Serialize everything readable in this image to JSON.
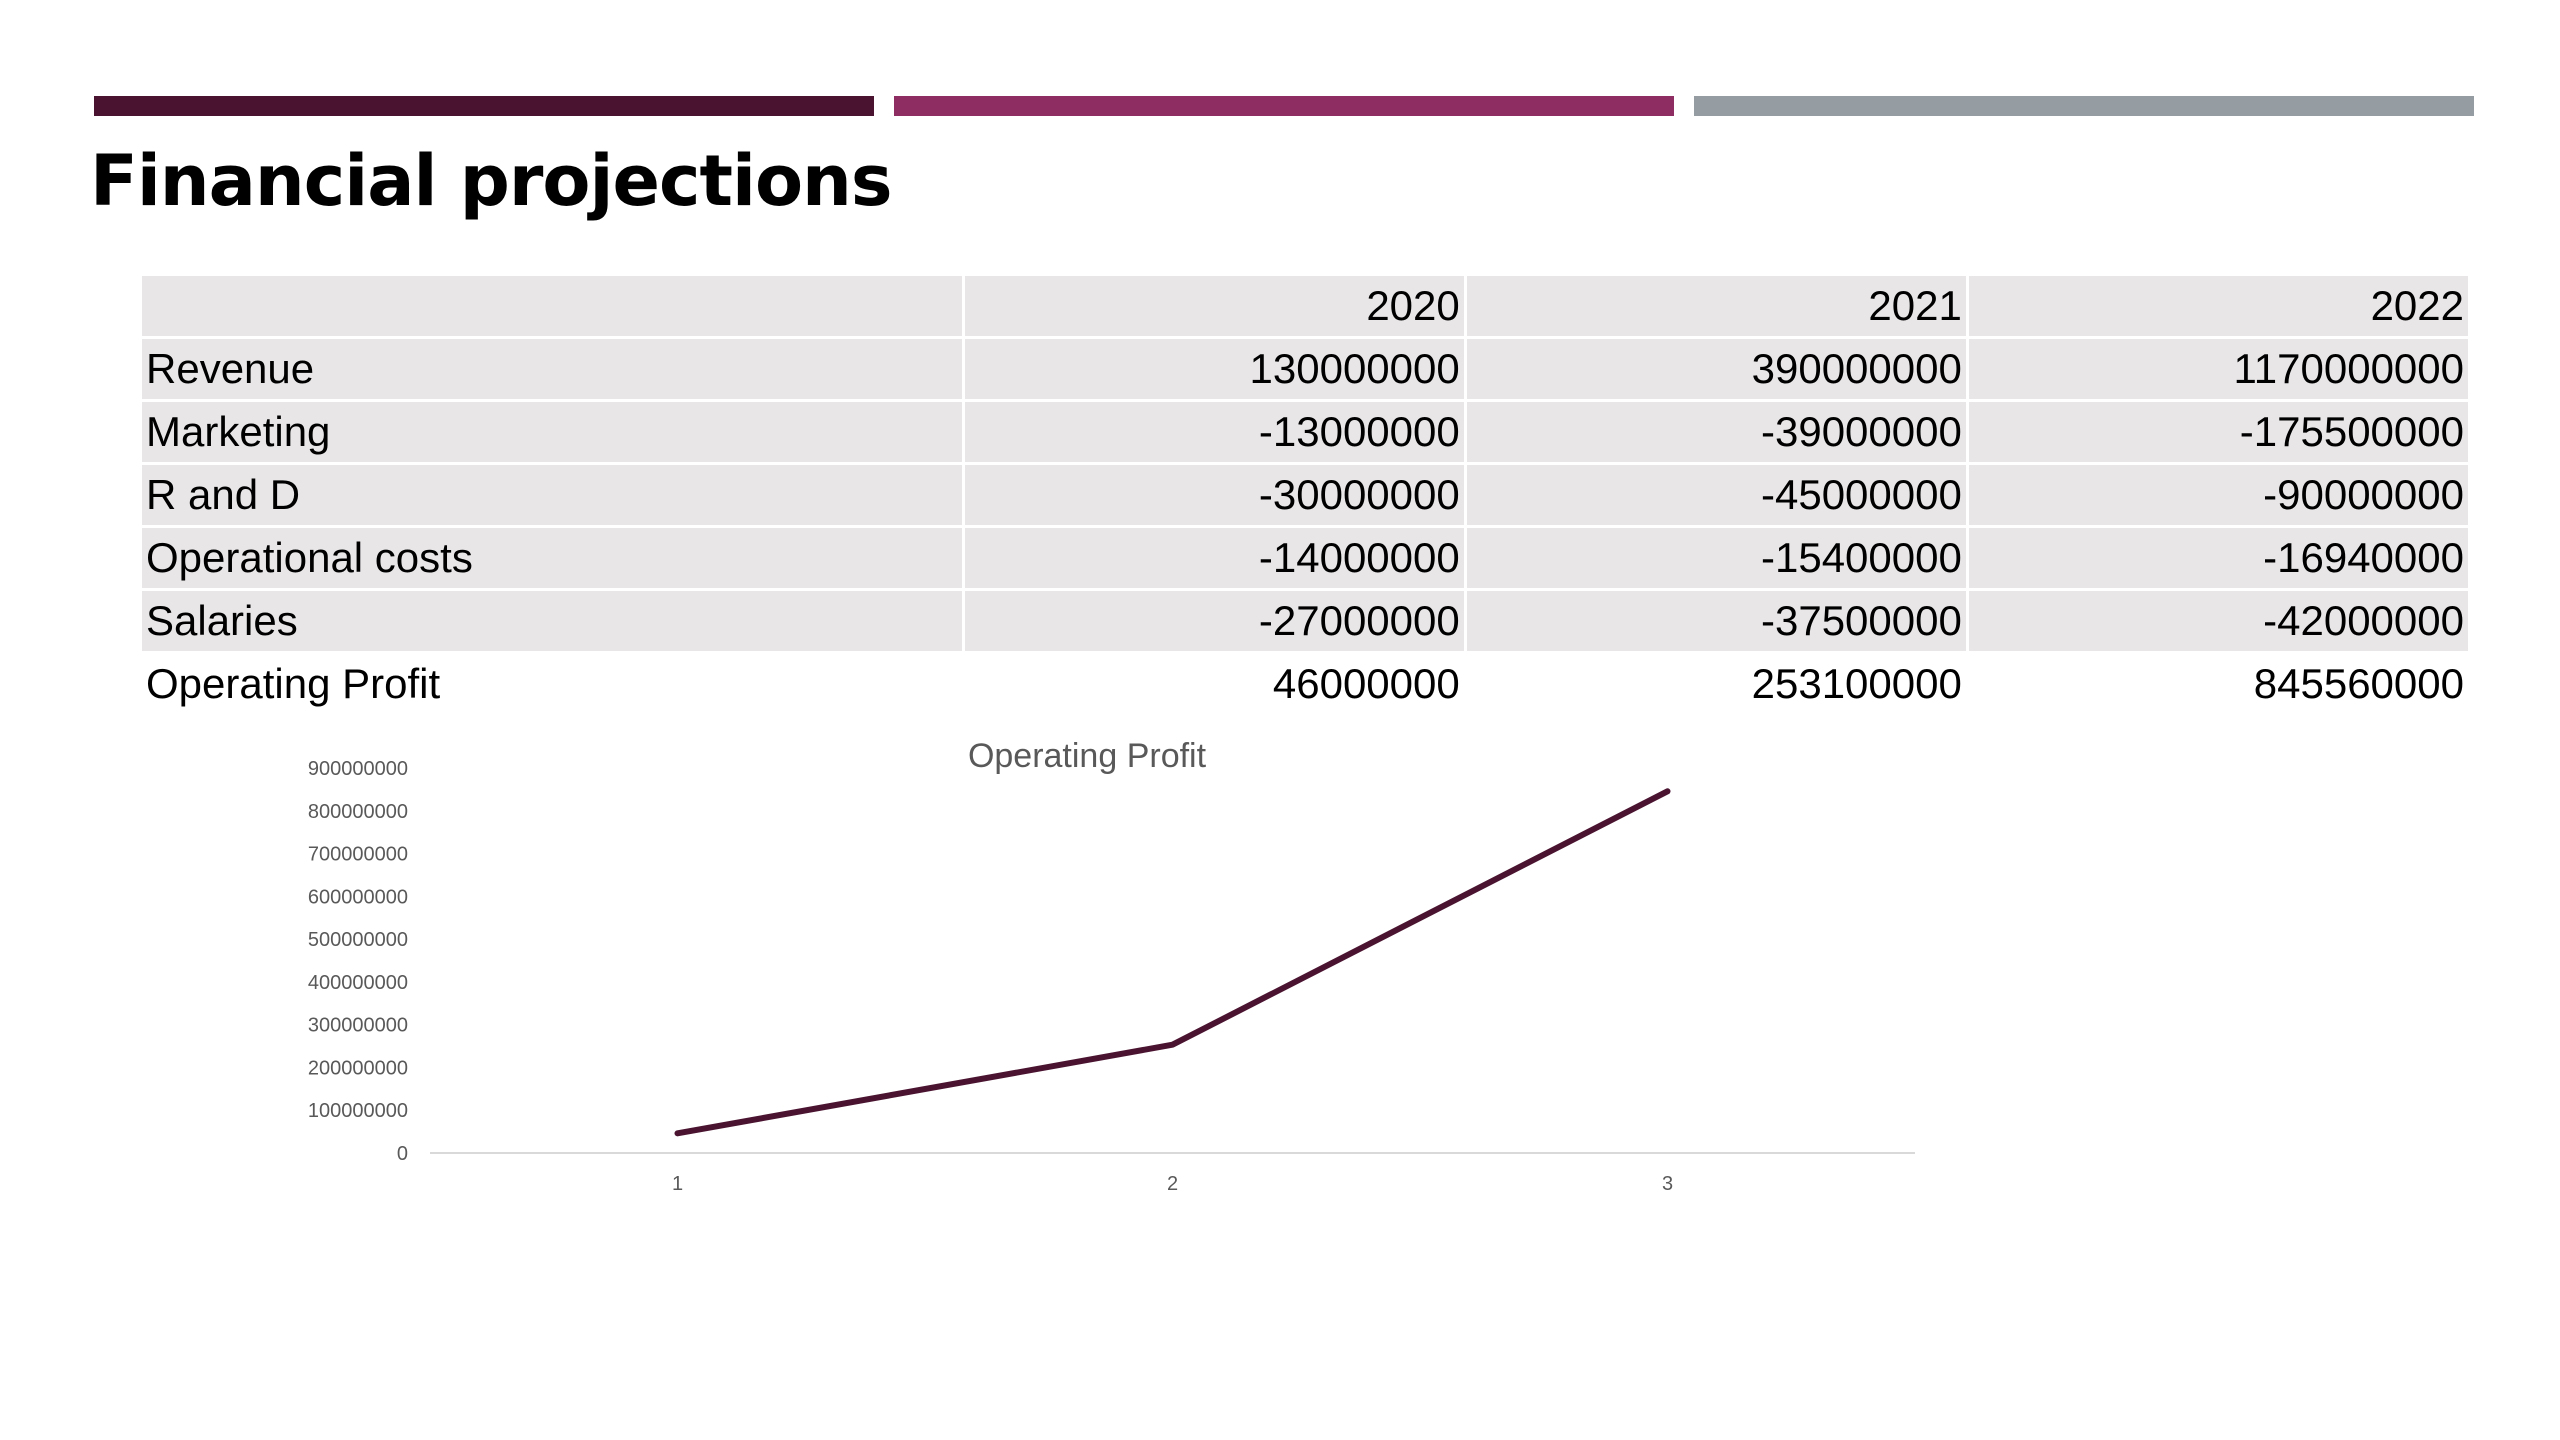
{
  "title": "Financial projections",
  "colors": {
    "accent_dark": "#4a1430",
    "accent_mid": "#8e2d62",
    "accent_gray": "#959da3",
    "table_shade": "#e8e6e7",
    "line": "#4a1430",
    "axis_text": "#595959",
    "axis_line": "#d9d9d9"
  },
  "table": {
    "columns": [
      "",
      "2020",
      "2021",
      "2022"
    ],
    "rows": [
      {
        "label": "Revenue",
        "values": [
          "130000000",
          "390000000",
          "1170000000"
        ]
      },
      {
        "label": "Marketing",
        "values": [
          "-13000000",
          "-39000000",
          "-175500000"
        ]
      },
      {
        "label": "R and D",
        "values": [
          "-30000000",
          "-45000000",
          "-90000000"
        ]
      },
      {
        "label": "Operational costs",
        "values": [
          "-14000000",
          "-15400000",
          "-16940000"
        ]
      },
      {
        "label": "Salaries",
        "values": [
          "-27000000",
          "-37500000",
          "-42000000"
        ]
      },
      {
        "label": "Operating Profit",
        "values": [
          "46000000",
          "253100000",
          "845560000"
        ]
      }
    ]
  },
  "chart_data": {
    "type": "line",
    "title": "Operating Profit",
    "categories": [
      "1",
      "2",
      "3"
    ],
    "series": [
      {
        "values": [
          46000000,
          253100000,
          845560000
        ]
      }
    ],
    "ylim": [
      0,
      900000000
    ],
    "yticks": [
      "0",
      "100000000",
      "200000000",
      "300000000",
      "400000000",
      "500000000",
      "600000000",
      "700000000",
      "800000000",
      "900000000"
    ],
    "xlabel": "",
    "ylabel": "",
    "grid": false,
    "legend": "none"
  }
}
